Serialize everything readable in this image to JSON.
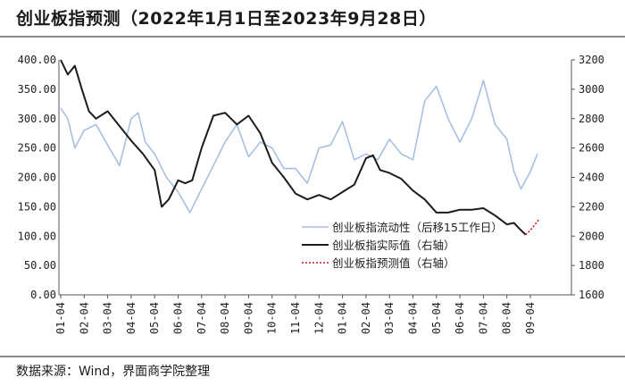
{
  "title": "创业板指预测（2022年1月1日至2023年9月28日）",
  "source": "数据来源：Wind，界面商学院整理",
  "colors": {
    "flow": "#a9bfe0",
    "actual": "#1c1c1c",
    "predicted": "#d21a1a"
  },
  "chart_data": {
    "type": "line",
    "title": "创业板指预测（2022年1月1日至2023年9月28日）",
    "legend_position": "center-right",
    "x_tick_labels": [
      "01-04",
      "02-04",
      "03-04",
      "04-04",
      "05-04",
      "06-04",
      "07-04",
      "08-04",
      "09-04",
      "10-04",
      "11-04",
      "12-04",
      "01-04",
      "02-04",
      "03-04",
      "04-04",
      "05-04",
      "06-04",
      "07-04",
      "08-04",
      "09-04"
    ],
    "left_axis": {
      "ylim": [
        0,
        400
      ],
      "ticks": [
        "0.00",
        "50.00",
        "100.00",
        "150.00",
        "200.00",
        "250.00",
        "300.00",
        "350.00",
        "400.00"
      ]
    },
    "right_axis": {
      "ylim": [
        1600,
        3200
      ],
      "ticks": [
        "1600",
        "1800",
        "2000",
        "2200",
        "2400",
        "2600",
        "2800",
        "3000",
        "3200"
      ]
    },
    "series": [
      {
        "name": "创业板指流动性（后移15工作日）",
        "axis": "left",
        "style": "solid",
        "x": [
          0,
          0.3,
          0.6,
          1.0,
          1.5,
          2.0,
          2.5,
          3.0,
          3.3,
          3.6,
          4.0,
          4.5,
          5.0,
          5.5,
          6.0,
          6.5,
          7.0,
          7.5,
          8.0,
          8.5,
          9.0,
          9.5,
          10.0,
          10.5,
          11.0,
          11.5,
          12.0,
          12.5,
          13.0,
          13.5,
          14.0,
          14.5,
          15.0,
          15.5,
          16.0,
          16.5,
          17.0,
          17.5,
          18.0,
          18.5,
          19.0,
          19.3,
          19.6,
          20.0,
          20.3
        ],
        "values": [
          318,
          300,
          250,
          280,
          290,
          255,
          220,
          300,
          310,
          260,
          240,
          200,
          175,
          140,
          180,
          220,
          260,
          290,
          235,
          260,
          250,
          215,
          215,
          190,
          250,
          255,
          295,
          230,
          240,
          230,
          265,
          240,
          230,
          330,
          355,
          300,
          260,
          300,
          365,
          290,
          265,
          210,
          180,
          210,
          240
        ]
      },
      {
        "name": "创业板指实际值（右轴）",
        "axis": "right",
        "style": "solid",
        "x": [
          0,
          0.3,
          0.6,
          0.9,
          1.2,
          1.5,
          2.0,
          2.5,
          3.0,
          3.5,
          4.0,
          4.3,
          4.6,
          5.0,
          5.3,
          5.6,
          6.0,
          6.5,
          7.0,
          7.5,
          8.0,
          8.5,
          9.0,
          9.5,
          10.0,
          10.5,
          11.0,
          11.5,
          12.0,
          12.5,
          13.0,
          13.3,
          13.6,
          14.0,
          14.5,
          15.0,
          15.5,
          16.0,
          16.5,
          17.0,
          17.5,
          18.0,
          18.5,
          19.0,
          19.3,
          19.6,
          19.8
        ],
        "values": [
          3200,
          3100,
          3160,
          3000,
          2850,
          2800,
          2850,
          2750,
          2650,
          2560,
          2450,
          2200,
          2250,
          2380,
          2360,
          2380,
          2600,
          2820,
          2840,
          2760,
          2820,
          2700,
          2500,
          2400,
          2290,
          2250,
          2280,
          2250,
          2300,
          2350,
          2530,
          2550,
          2450,
          2430,
          2390,
          2310,
          2250,
          2160,
          2160,
          2180,
          2180,
          2190,
          2140,
          2080,
          2090,
          2040,
          2010
        ]
      },
      {
        "name": "创业板指预测值（右轴）",
        "axis": "right",
        "style": "dotted",
        "x": [
          19.8,
          20.0,
          20.2,
          20.4
        ],
        "values": [
          2010,
          2040,
          2080,
          2120
        ]
      }
    ]
  }
}
